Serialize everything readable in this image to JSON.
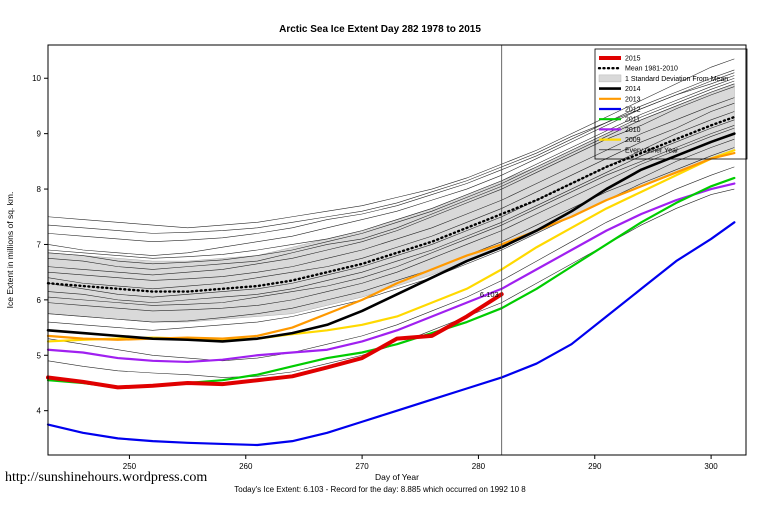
{
  "title": "Arctic Sea Ice Extent Day 282 1978 to 2015",
  "footer": {
    "url": "http://sunshinehours.wordpress.com",
    "caption": "Today's Ice Extent: 6.103  - Record for the day: 8.885 which occurred on 1992 10 8"
  },
  "chart_data": {
    "type": "line",
    "title": "Arctic Sea Ice Extent Day 282 1978 to 2015",
    "xlabel": "Day of Year",
    "ylabel": "Ice Extent in millions of sq. km.",
    "xlim": [
      243,
      303
    ],
    "ylim": [
      3.2,
      10.6
    ],
    "xticks": [
      250,
      260,
      270,
      280,
      290,
      300
    ],
    "yticks": [
      4,
      5,
      6,
      7,
      8,
      9,
      10
    ],
    "vline_x": 282,
    "annotation": {
      "x": 282,
      "y": 6.103,
      "label": "6.103",
      "color": "#ff2a2a"
    },
    "x": [
      243,
      246,
      249,
      252,
      255,
      258,
      261,
      264,
      267,
      270,
      273,
      276,
      279,
      282,
      285,
      288,
      291,
      294,
      297,
      300,
      302
    ],
    "band": {
      "name": "1 Standard Deviation From Mean",
      "color": "#d9d9d9",
      "upper": [
        6.85,
        6.8,
        6.75,
        6.7,
        6.7,
        6.75,
        6.8,
        6.95,
        7.1,
        7.25,
        7.45,
        7.65,
        7.9,
        8.15,
        8.4,
        8.7,
        9.0,
        9.25,
        9.5,
        9.75,
        9.9
      ],
      "lower": [
        5.75,
        5.7,
        5.65,
        5.6,
        5.6,
        5.65,
        5.7,
        5.75,
        5.9,
        6.05,
        6.25,
        6.45,
        6.7,
        6.95,
        7.2,
        7.5,
        7.8,
        8.05,
        8.3,
        8.55,
        8.7
      ]
    },
    "mean": {
      "name": "Mean 1981-2010",
      "color": "#000000",
      "y": [
        6.3,
        6.25,
        6.2,
        6.15,
        6.15,
        6.2,
        6.25,
        6.35,
        6.5,
        6.65,
        6.85,
        7.05,
        7.3,
        7.55,
        7.8,
        8.1,
        8.4,
        8.65,
        8.9,
        9.15,
        9.3
      ]
    },
    "series": [
      {
        "name": "2015",
        "color": "#e00000",
        "width": 4,
        "y": [
          4.6,
          4.52,
          4.42,
          4.45,
          4.5,
          4.48,
          4.55,
          4.62,
          4.78,
          4.95,
          5.3,
          5.35,
          5.7,
          6.103
        ]
      },
      {
        "name": "2014",
        "color": "#000000",
        "width": 2.6,
        "y": [
          5.45,
          5.4,
          5.35,
          5.3,
          5.28,
          5.25,
          5.3,
          5.4,
          5.55,
          5.8,
          6.1,
          6.4,
          6.7,
          6.95,
          7.25,
          7.6,
          8.0,
          8.35,
          8.6,
          8.85,
          9.0
        ]
      },
      {
        "name": "2013",
        "color": "#ff9900",
        "width": 2.2,
        "y": [
          5.35,
          5.3,
          5.28,
          5.3,
          5.32,
          5.3,
          5.35,
          5.5,
          5.75,
          6.0,
          6.3,
          6.55,
          6.8,
          7.0,
          7.25,
          7.5,
          7.8,
          8.05,
          8.3,
          8.55,
          8.65
        ]
      },
      {
        "name": "2012",
        "color": "#0000ee",
        "width": 2.2,
        "y": [
          3.75,
          3.6,
          3.5,
          3.45,
          3.42,
          3.4,
          3.38,
          3.45,
          3.6,
          3.8,
          4.0,
          4.2,
          4.4,
          4.6,
          4.85,
          5.2,
          5.7,
          6.2,
          6.7,
          7.1,
          7.4
        ]
      },
      {
        "name": "2011",
        "color": "#00cc00",
        "width": 2.2,
        "y": [
          4.55,
          4.5,
          4.42,
          4.45,
          4.5,
          4.55,
          4.65,
          4.8,
          4.95,
          5.05,
          5.2,
          5.4,
          5.6,
          5.85,
          6.2,
          6.6,
          7.0,
          7.4,
          7.75,
          8.05,
          8.2
        ]
      },
      {
        "name": "2010",
        "color": "#a020f0",
        "width": 2.2,
        "y": [
          5.1,
          5.05,
          4.95,
          4.9,
          4.88,
          4.92,
          5.0,
          5.05,
          5.1,
          5.25,
          5.45,
          5.7,
          5.95,
          6.2,
          6.55,
          6.9,
          7.25,
          7.55,
          7.8,
          8.0,
          8.1
        ]
      },
      {
        "name": "2009",
        "color": "#ffd900",
        "width": 2.2,
        "y": [
          5.25,
          5.28,
          5.3,
          5.32,
          5.3,
          5.28,
          5.3,
          5.38,
          5.45,
          5.55,
          5.7,
          5.95,
          6.2,
          6.55,
          6.95,
          7.3,
          7.65,
          7.95,
          8.25,
          8.55,
          8.7
        ]
      }
    ],
    "background_years": {
      "name": "Every Other Year",
      "color": "#2a2a2a",
      "width": 0.6,
      "lines": [
        [
          6.9,
          6.85,
          6.8,
          6.75,
          6.78,
          6.82,
          6.9,
          7.0,
          7.1,
          7.25,
          7.45,
          7.65,
          7.9,
          8.15,
          8.45,
          8.75,
          9.05,
          9.35,
          9.6,
          9.85,
          10.0
        ],
        [
          7.35,
          7.3,
          7.25,
          7.2,
          7.22,
          7.25,
          7.3,
          7.4,
          7.5,
          7.6,
          7.75,
          7.95,
          8.15,
          8.4,
          8.65,
          8.95,
          9.2,
          9.5,
          9.75,
          10.0,
          10.15
        ],
        [
          6.6,
          6.55,
          6.5,
          6.45,
          6.5,
          6.55,
          6.65,
          6.75,
          6.9,
          7.05,
          7.25,
          7.5,
          7.75,
          8.0,
          8.3,
          8.6,
          8.9,
          9.15,
          9.45,
          9.7,
          9.85
        ],
        [
          6.4,
          6.3,
          6.25,
          6.2,
          6.25,
          6.3,
          6.4,
          6.5,
          6.6,
          6.75,
          6.95,
          7.15,
          7.4,
          7.65,
          7.95,
          8.25,
          8.55,
          8.85,
          9.1,
          9.4,
          9.55
        ],
        [
          6.15,
          6.1,
          6.0,
          5.95,
          6.0,
          6.05,
          6.1,
          6.2,
          6.35,
          6.5,
          6.7,
          6.9,
          7.15,
          7.4,
          7.7,
          8.0,
          8.3,
          8.6,
          8.85,
          9.1,
          9.25
        ],
        [
          5.95,
          5.9,
          5.85,
          5.8,
          5.82,
          5.85,
          5.9,
          6.0,
          6.15,
          6.3,
          6.5,
          6.75,
          7.0,
          7.25,
          7.55,
          7.85,
          8.15,
          8.45,
          8.7,
          8.95,
          9.1
        ],
        [
          5.75,
          5.7,
          5.65,
          5.6,
          5.62,
          5.68,
          5.75,
          5.85,
          6.0,
          6.15,
          6.35,
          6.55,
          6.8,
          7.05,
          7.35,
          7.65,
          7.95,
          8.2,
          8.5,
          8.75,
          8.9
        ],
        [
          5.6,
          5.55,
          5.5,
          5.45,
          5.5,
          5.55,
          5.6,
          5.7,
          5.85,
          6.0,
          6.2,
          6.4,
          6.65,
          6.9,
          7.2,
          7.5,
          7.8,
          8.1,
          8.35,
          8.6,
          8.75
        ],
        [
          7.0,
          6.9,
          6.85,
          6.8,
          6.85,
          6.95,
          7.05,
          7.15,
          7.3,
          7.45,
          7.6,
          7.8,
          8.0,
          8.25,
          8.55,
          8.85,
          9.15,
          9.45,
          9.7,
          9.9,
          10.05
        ],
        [
          6.75,
          6.7,
          6.6,
          6.55,
          6.6,
          6.65,
          6.7,
          6.85,
          7.0,
          7.1,
          7.3,
          7.55,
          7.8,
          8.05,
          8.35,
          8.65,
          8.95,
          9.25,
          9.5,
          9.75,
          9.9
        ],
        [
          4.9,
          4.8,
          4.72,
          4.68,
          4.65,
          4.6,
          4.62,
          4.7,
          4.85,
          5.0,
          5.2,
          5.45,
          5.7,
          5.95,
          6.3,
          6.65,
          7.0,
          7.35,
          7.65,
          7.9,
          8.0
        ],
        [
          5.3,
          5.2,
          5.1,
          5.0,
          4.95,
          4.9,
          4.95,
          5.05,
          5.2,
          5.35,
          5.55,
          5.8,
          6.05,
          6.35,
          6.7,
          7.05,
          7.4,
          7.7,
          8.0,
          8.25,
          8.4
        ],
        [
          6.3,
          6.2,
          6.1,
          6.05,
          6.1,
          6.15,
          6.2,
          6.3,
          6.45,
          6.6,
          6.8,
          7.0,
          7.25,
          7.5,
          7.8,
          8.1,
          8.4,
          8.7,
          9.0,
          9.25,
          9.4
        ],
        [
          7.2,
          7.15,
          7.1,
          7.05,
          7.08,
          7.12,
          7.2,
          7.3,
          7.45,
          7.55,
          7.7,
          7.9,
          8.1,
          8.35,
          8.6,
          8.9,
          9.2,
          9.45,
          9.7,
          9.95,
          10.1
        ],
        [
          6.05,
          6.0,
          5.95,
          5.9,
          5.92,
          5.95,
          6.05,
          6.15,
          6.25,
          6.4,
          6.6,
          6.85,
          7.1,
          7.35,
          7.65,
          7.95,
          8.25,
          8.5,
          8.75,
          9.0,
          9.15
        ],
        [
          6.5,
          6.45,
          6.4,
          6.35,
          6.38,
          6.42,
          6.5,
          6.6,
          6.75,
          6.9,
          7.1,
          7.3,
          7.55,
          7.8,
          8.1,
          8.4,
          8.7,
          9.0,
          9.25,
          9.5,
          9.65
        ],
        [
          6.85,
          6.8,
          6.7,
          6.65,
          6.68,
          6.72,
          6.8,
          6.9,
          7.05,
          7.2,
          7.4,
          7.6,
          7.85,
          8.1,
          8.4,
          8.7,
          9.0,
          9.3,
          9.55,
          9.8,
          9.95
        ],
        [
          7.5,
          7.45,
          7.4,
          7.35,
          7.3,
          7.35,
          7.4,
          7.5,
          7.6,
          7.7,
          7.85,
          8.0,
          8.2,
          8.45,
          8.7,
          9.0,
          9.3,
          9.6,
          9.9,
          10.2,
          10.35
        ]
      ]
    },
    "legend": [
      {
        "label": "2015",
        "color": "#e00000",
        "width": 4
      },
      {
        "label": "Mean 1981-2010",
        "color": "#000000",
        "width": 2.4,
        "dash": "1 3.5"
      },
      {
        "label": "1 Standard Deviation From Mean",
        "type": "band",
        "color": "#d9d9d9"
      },
      {
        "label": "2014",
        "color": "#000000",
        "width": 2.6
      },
      {
        "label": "2013",
        "color": "#ff9900",
        "width": 2.2
      },
      {
        "label": "2012",
        "color": "#0000ee",
        "width": 2.2
      },
      {
        "label": "2011",
        "color": "#00cc00",
        "width": 2.2
      },
      {
        "label": "2010",
        "color": "#a020f0",
        "width": 2.2
      },
      {
        "label": "2009",
        "color": "#ffd900",
        "width": 2.2
      },
      {
        "label": "Every Other Year",
        "color": "#000000",
        "width": 0.7
      }
    ]
  }
}
